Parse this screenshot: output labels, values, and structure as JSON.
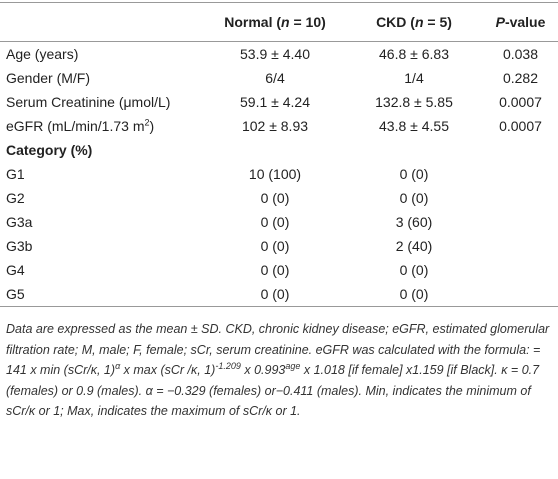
{
  "table": {
    "header": [
      "",
      [
        {
          "t": "Normal ("
        },
        {
          "i": "n"
        },
        {
          "t": " = 10)"
        }
      ],
      [
        {
          "t": "CKD ("
        },
        {
          "i": "n"
        },
        {
          "t": " = 5)"
        }
      ],
      [
        {
          "i": "P"
        },
        {
          "t": "-value"
        }
      ]
    ],
    "rows": [
      [
        [
          {
            "t": "Age (years)"
          }
        ],
        "53.9 ± 4.40",
        "46.8 ± 6.83",
        "0.038"
      ],
      [
        [
          {
            "t": "Gender (M/F)"
          }
        ],
        "6/4",
        "1/4",
        "0.282"
      ],
      [
        [
          {
            "t": "Serum Creatinine (μmol/L)"
          }
        ],
        "59.1 ± 4.24",
        "132.8 ± 5.85",
        "0.0007"
      ],
      [
        [
          {
            "t": "eGFR (mL/min/1.73 m"
          },
          {
            "sup": "2"
          },
          {
            "t": ")"
          }
        ],
        "102 ± 8.93",
        "43.8 ± 4.55",
        "0.0007"
      ],
      [
        [
          {
            "t": "Category (%)"
          }
        ],
        "",
        "",
        ""
      ],
      [
        [
          {
            "t": "G1"
          }
        ],
        "10 (100)",
        "0 (0)",
        ""
      ],
      [
        [
          {
            "t": "G2"
          }
        ],
        "0 (0)",
        "0 (0)",
        ""
      ],
      [
        [
          {
            "t": "G3a"
          }
        ],
        "0 (0)",
        "3 (60)",
        ""
      ],
      [
        [
          {
            "t": "G3b"
          }
        ],
        "0 (0)",
        "2 (40)",
        ""
      ],
      [
        [
          {
            "t": "G4"
          }
        ],
        "0 (0)",
        "0 (0)",
        ""
      ],
      [
        [
          {
            "t": "G5"
          }
        ],
        "0 (0)",
        "0 (0)",
        ""
      ]
    ],
    "section_row": 4
  },
  "footnote": [
    {
      "t": "Data are expressed as the mean ± SD. CKD, chronic kidney disease; eGFR, estimated glomerular filtration rate; M, male; F, female; sCr, serum creatinine. eGFR was calculated with the formula: = 141 x min (sCr/κ, 1)"
    },
    {
      "sup": "α"
    },
    {
      "t": " x max (sCr /κ, 1)"
    },
    {
      "sup": "-1.209"
    },
    {
      "t": " x 0.993"
    },
    {
      "sup": "age"
    },
    {
      "t": " x 1.018 [if female] x1.159 [if Black]. κ = 0.7 (females) or 0.9 (males). α = −0.329 (females) or−0.411 (males). Min, indicates the minimum of sCr/κ or 1; Max, indicates the maximum of sCr/κ or 1."
    }
  ]
}
